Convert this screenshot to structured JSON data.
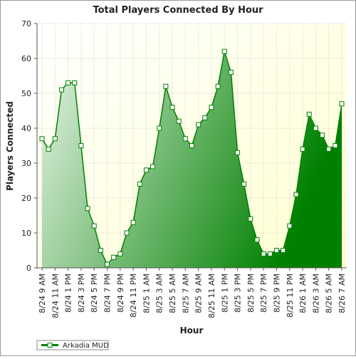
{
  "chart_data": {
    "type": "area",
    "title": "Total Players Connected By Hour",
    "x_label": "Hour",
    "y_label": "Players Connected",
    "categories": [
      "8/24 9 AM",
      null,
      "8/24 11 AM",
      null,
      "8/24 1 PM",
      null,
      "8/24 3 PM",
      null,
      "8/24 5 PM",
      null,
      "8/24 7 PM",
      null,
      "8/24 9 PM",
      null,
      "8/24 11 PM",
      null,
      "8/25 1 AM",
      null,
      "8/25 3 AM",
      null,
      "8/25 5 AM",
      null,
      "8/25 7 AM",
      null,
      "8/25 9 AM",
      null,
      "8/25 11 AM",
      null,
      "8/25 1 PM",
      null,
      "8/25 3 PM",
      null,
      "8/25 5 PM",
      null,
      "8/25 7 PM",
      null,
      "8/25 9 PM",
      null,
      "8/25 11 PM",
      null,
      "8/26 1 AM",
      null,
      "8/26 3 AM",
      null,
      "8/26 5 AM",
      null,
      "8/26 7 AM"
    ],
    "series": [
      {
        "name": "Arkadia MUD",
        "color": "#008000",
        "values": [
          37,
          34,
          37,
          51,
          53,
          53,
          35,
          17,
          12,
          5,
          1,
          3,
          4,
          10,
          13,
          24,
          28,
          29,
          40,
          52,
          46,
          42,
          37,
          35,
          41,
          43,
          46,
          52,
          62,
          56,
          33,
          24,
          14,
          8,
          4,
          4,
          5,
          5,
          12,
          21,
          34,
          44,
          40,
          38,
          34,
          35,
          47
        ]
      }
    ],
    "ylim": [
      0,
      70
    ],
    "yticks": [
      0,
      10,
      20,
      30,
      40,
      50,
      60,
      70
    ],
    "grid": true
  }
}
